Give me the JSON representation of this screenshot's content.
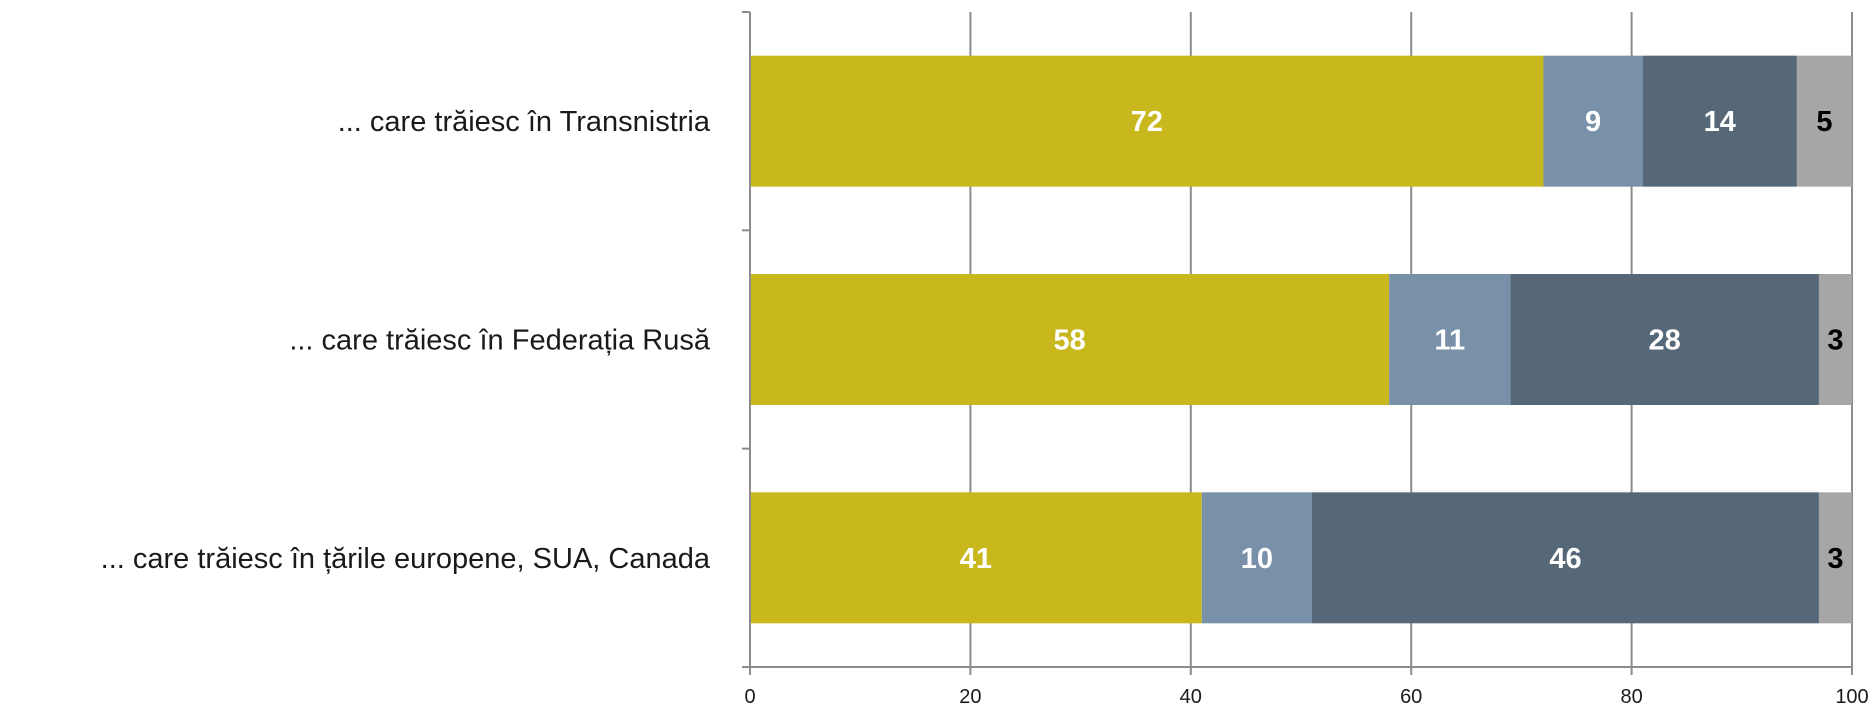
{
  "chart_data": {
    "type": "bar",
    "orientation": "horizontal",
    "stacked": true,
    "categories": [
      "... care trăiesc în Transnistria",
      "... care trăiesc în Federația Rusă",
      "... care trăiesc în țările europene, SUA, Canada"
    ],
    "series": [
      {
        "values": [
          72,
          58,
          41
        ],
        "color": "#c8b81e",
        "label_color": "#ffffff"
      },
      {
        "values": [
          9,
          11,
          10
        ],
        "color": "#7891a8",
        "label_color": "#ffffff"
      },
      {
        "values": [
          14,
          28,
          46
        ],
        "color": "#566878",
        "label_color": "#ffffff"
      },
      {
        "values": [
          5,
          3,
          3
        ],
        "color": "#a6a6a6",
        "label_color": "#000000"
      }
    ],
    "x_ticks": [
      "0",
      "20",
      "40",
      "60",
      "80",
      "100"
    ],
    "xlim": [
      0,
      100
    ],
    "grid": true,
    "legend": "none"
  }
}
